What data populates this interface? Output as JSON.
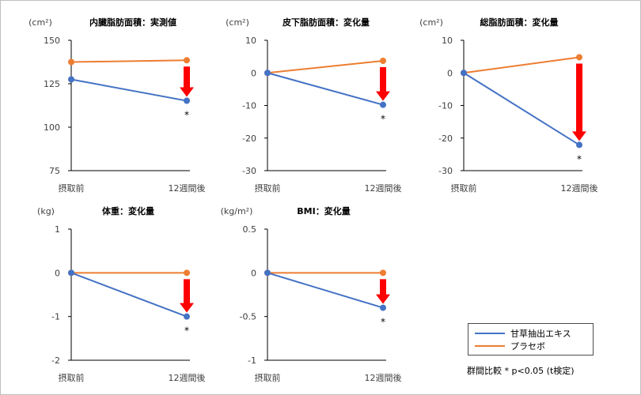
{
  "colors": {
    "kanzo": "#4472c4",
    "placebo": "#ed7d31",
    "arrow": "#ff0000",
    "axis": "#000000"
  },
  "legend": {
    "series1": "甘草抽出エキス",
    "series2": "プラセボ"
  },
  "footnote": "群間比較 * p<0.05 (t検定)",
  "chart_data": [
    {
      "type": "line",
      "title": "内臓脂肪面積：実測値",
      "unit": "(cm²)",
      "categories": [
        "摂取前",
        "12週間後"
      ],
      "ylim": [
        75,
        150
      ],
      "yticks": [
        75,
        100,
        125,
        150
      ],
      "ytick_labels": [
        "75",
        "100",
        "125",
        "150"
      ],
      "series": [
        {
          "name": "甘草抽出エキス",
          "values": [
            127.5,
            115.2
          ]
        },
        {
          "name": "プラセボ",
          "values": [
            137.5,
            138.5
          ]
        }
      ],
      "significance": "*"
    },
    {
      "type": "line",
      "title": "皮下脂肪面積：変化量",
      "unit": "(cm²)",
      "categories": [
        "摂取前",
        "12週間後"
      ],
      "ylim": [
        -30,
        10
      ],
      "yticks": [
        -30,
        -20,
        -10,
        0,
        10
      ],
      "ytick_labels": [
        "-30",
        "-20",
        "-10",
        "0",
        "10"
      ],
      "series": [
        {
          "name": "甘草抽出エキス",
          "values": [
            0,
            -9.8
          ]
        },
        {
          "name": "プラセボ",
          "values": [
            0,
            3.7
          ]
        }
      ],
      "significance": "*"
    },
    {
      "type": "line",
      "title": "総脂肪面積：変化量",
      "unit": "(cm²)",
      "categories": [
        "摂取前",
        "12週間後"
      ],
      "ylim": [
        -30,
        10
      ],
      "yticks": [
        -30,
        -20,
        -10,
        0,
        10
      ],
      "ytick_labels": [
        "-30",
        "-20",
        "-10",
        "0",
        "10"
      ],
      "series": [
        {
          "name": "甘草抽出エキス",
          "values": [
            0,
            -22.1
          ]
        },
        {
          "name": "プラセボ",
          "values": [
            0,
            4.8
          ]
        }
      ],
      "significance": "*"
    },
    {
      "type": "line",
      "title": "体重：変化量",
      "unit": "(kg)",
      "categories": [
        "摂取前",
        "12週間後"
      ],
      "ylim": [
        -2,
        1
      ],
      "yticks": [
        -2,
        -1,
        0,
        1
      ],
      "ytick_labels": [
        "-2",
        "-1",
        "0",
        "1"
      ],
      "series": [
        {
          "name": "甘草抽出エキス",
          "values": [
            0,
            -1.0
          ]
        },
        {
          "name": "プラセボ",
          "values": [
            0,
            0
          ]
        }
      ],
      "significance": "*"
    },
    {
      "type": "line",
      "title": "BMI：変化量",
      "unit": "(kg/m²)",
      "categories": [
        "摂取前",
        "12週間後"
      ],
      "ylim": [
        -1,
        0.5
      ],
      "yticks": [
        -1,
        -0.5,
        0,
        0.5
      ],
      "ytick_labels": [
        "-1",
        "-0.5",
        "0",
        "0.5"
      ],
      "series": [
        {
          "name": "甘草抽出エキス",
          "values": [
            0,
            -0.4
          ]
        },
        {
          "name": "プラセボ",
          "values": [
            0,
            0
          ]
        }
      ],
      "significance": "*"
    }
  ]
}
